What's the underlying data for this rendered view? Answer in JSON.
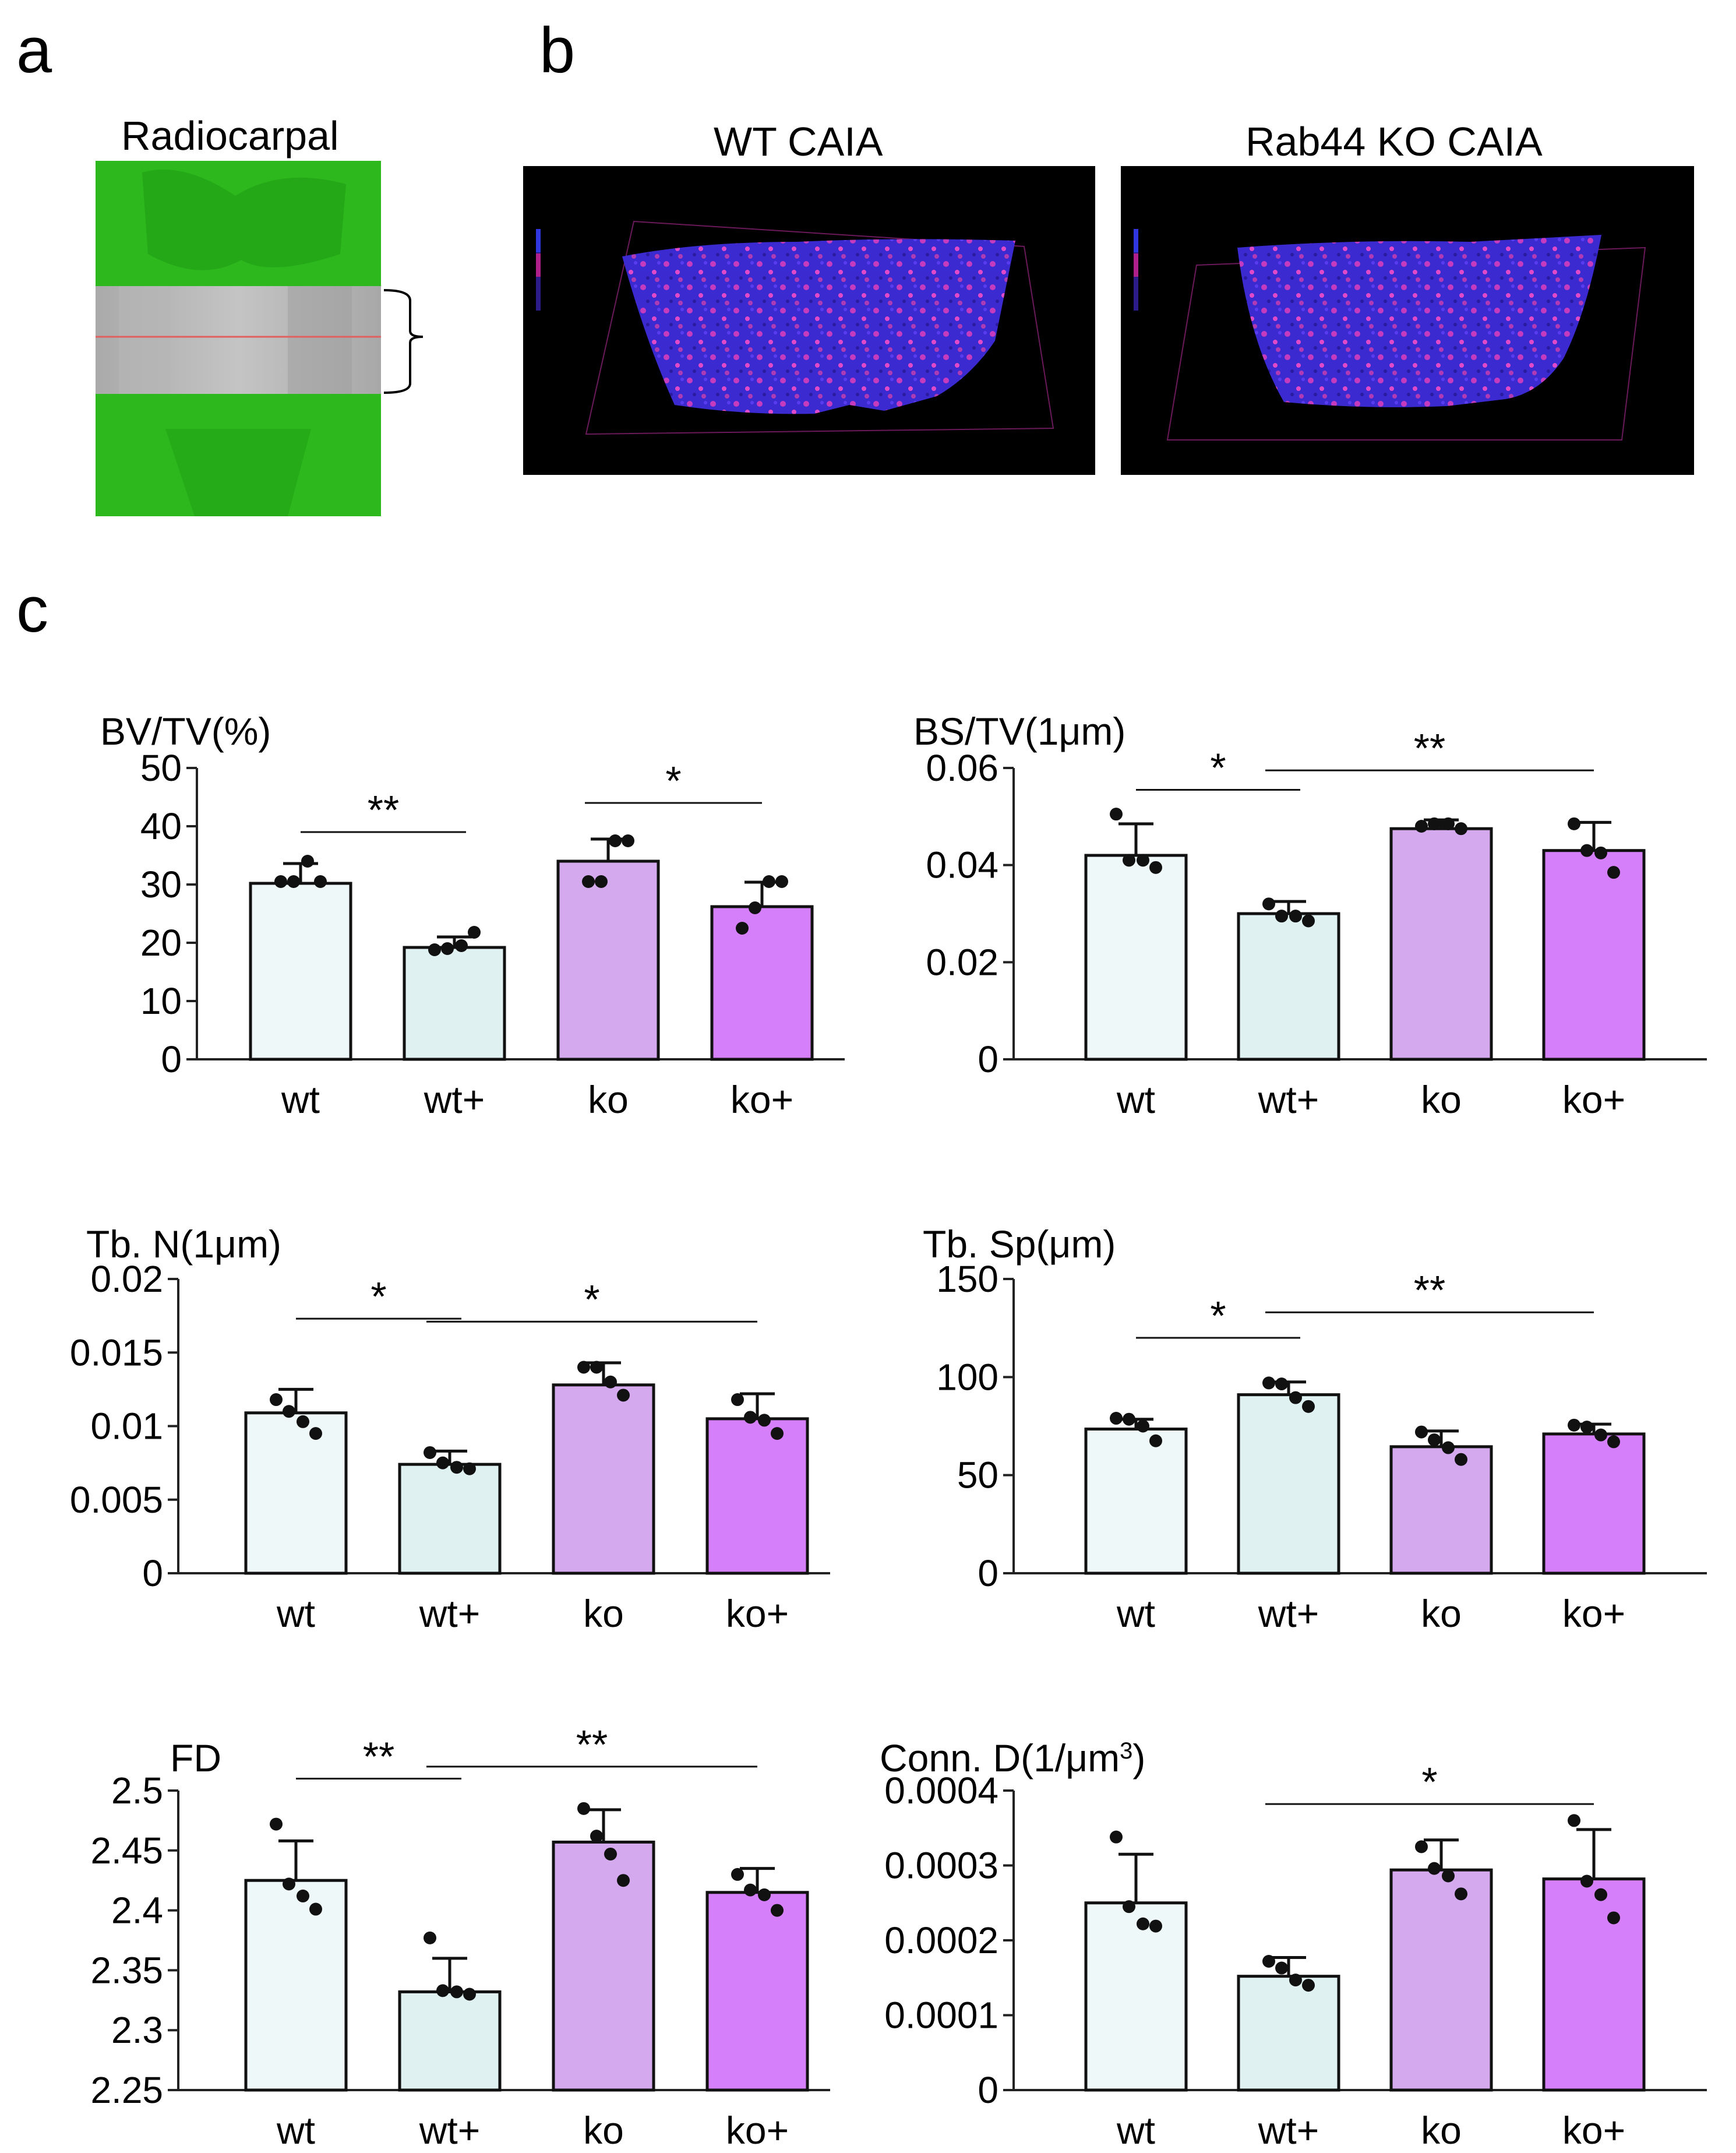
{
  "panels": {
    "a": "a",
    "b": "b",
    "c": "c"
  },
  "images": {
    "radiocarpal_title": "Radiocarpal",
    "wt_title": "WT CAIA",
    "ko_title": "Rab44 KO CAIA"
  },
  "colors": {
    "wt": "#eff8f8",
    "wt_plus": "#e0f1f1",
    "ko": "#d4a9ee",
    "ko_plus": "#d67ffa",
    "green": "#22b214",
    "ct_blue": "#3b2bd6",
    "ct_magenta": "#d43bb8"
  },
  "chart_data": [
    {
      "type": "bar",
      "id": "bvtv",
      "title": "BV/TV(%)",
      "categories": [
        "wt",
        "wt+",
        "ko",
        "ko+"
      ],
      "values": [
        30.2,
        19.2,
        34.0,
        26.2
      ],
      "errors": [
        3.4,
        1.8,
        3.8,
        4.2
      ],
      "points": [
        [
          30.5,
          30.5,
          34.0,
          30.5
        ],
        [
          18.8,
          19.0,
          19.5,
          21.8
        ],
        [
          30.5,
          30.5,
          37.5,
          37.5
        ],
        [
          22.5,
          26.0,
          30.5,
          30.5
        ]
      ],
      "ylim": [
        0,
        50
      ],
      "yticks": [
        0,
        10,
        20,
        30,
        40,
        50
      ],
      "ytick_labels": [
        "0",
        "10",
        "20",
        "30",
        "40",
        "50"
      ],
      "significance": [
        {
          "from": 0,
          "to": 1,
          "label": "**",
          "y": 39
        },
        {
          "from": 2,
          "to": 3,
          "label": "*",
          "y": 44
        }
      ]
    },
    {
      "type": "bar",
      "id": "bstv",
      "title": "BS/TV(1μm)",
      "categories": [
        "wt",
        "wt+",
        "ko",
        "ko+"
      ],
      "values": [
        0.042,
        0.03,
        0.0475,
        0.043
      ],
      "errors": [
        0.0065,
        0.0025,
        0.0018,
        0.0058
      ],
      "points": [
        [
          0.0505,
          0.041,
          0.041,
          0.0395
        ],
        [
          0.032,
          0.0295,
          0.0295,
          0.0285
        ],
        [
          0.048,
          0.0485,
          0.0485,
          0.0475
        ],
        [
          0.0485,
          0.043,
          0.0425,
          0.0385
        ]
      ],
      "ylim": [
        0,
        0.06
      ],
      "yticks": [
        0,
        0.02,
        0.04,
        0.06
      ],
      "ytick_labels": [
        "0",
        "0.02",
        "0.04",
        "0.06"
      ],
      "significance": [
        {
          "from": 0,
          "to": 1,
          "label": "*",
          "y": 0.0555
        },
        {
          "from": 1,
          "to": 3,
          "label": "**",
          "y": 0.0595
        }
      ]
    },
    {
      "type": "bar",
      "id": "tbn",
      "title": "Tb. N(1μm)",
      "categories": [
        "wt",
        "wt+",
        "ko",
        "ko+"
      ],
      "values": [
        0.0109,
        0.0074,
        0.0128,
        0.0105
      ],
      "errors": [
        0.0016,
        0.0009,
        0.0015,
        0.0017
      ],
      "points": [
        [
          0.0118,
          0.011,
          0.0103,
          0.0095
        ],
        [
          0.0082,
          0.0075,
          0.0072,
          0.0071
        ],
        [
          0.014,
          0.014,
          0.013,
          0.0121
        ],
        [
          0.0118,
          0.0106,
          0.0104,
          0.0095
        ]
      ],
      "ylim": [
        0,
        0.02
      ],
      "yticks": [
        0,
        0.005,
        0.01,
        0.015,
        0.02
      ],
      "ytick_labels": [
        "0",
        "0.005",
        "0.01",
        "0.015",
        "0.02"
      ],
      "significance": [
        {
          "from": 0,
          "to": 1,
          "label": "*",
          "y": 0.0173
        },
        {
          "from": 1,
          "to": 3,
          "label": "*",
          "y": 0.0171
        }
      ]
    },
    {
      "type": "bar",
      "id": "tbsp",
      "title": "Tb. Sp(μm)",
      "categories": [
        "wt",
        "wt+",
        "ko",
        "ko+"
      ],
      "values": [
        73.5,
        91.0,
        64.5,
        71.0
      ],
      "errors": [
        5.0,
        6.5,
        8.0,
        5.0
      ],
      "points": [
        [
          79.0,
          78.5,
          75.0,
          67.5
        ],
        [
          97.0,
          96.5,
          89.5,
          85.0
        ],
        [
          72.0,
          68.0,
          64.0,
          58.0
        ],
        [
          75.5,
          74.5,
          70.5,
          67.0
        ]
      ],
      "ylim": [
        0,
        150
      ],
      "yticks": [
        0,
        50,
        100,
        150
      ],
      "ytick_labels": [
        "0",
        "50",
        "100",
        "150"
      ],
      "significance": [
        {
          "from": 0,
          "to": 1,
          "label": "*",
          "y": 120
        },
        {
          "from": 1,
          "to": 3,
          "label": "**",
          "y": 133
        }
      ]
    },
    {
      "type": "bar",
      "id": "fd",
      "title": "FD",
      "categories": [
        "wt",
        "wt+",
        "ko",
        "ko+"
      ],
      "values": [
        2.425,
        2.332,
        2.457,
        2.415
      ],
      "errors": [
        0.033,
        0.028,
        0.027,
        0.02
      ],
      "points": [
        [
          2.472,
          2.422,
          2.412,
          2.401
        ],
        [
          2.377,
          2.333,
          2.332,
          2.33
        ],
        [
          2.485,
          2.462,
          2.447,
          2.425
        ],
        [
          2.43,
          2.417,
          2.413,
          2.4
        ]
      ],
      "ylim": [
        2.25,
        2.5
      ],
      "yticks": [
        2.25,
        2.3,
        2.35,
        2.4,
        2.45,
        2.5
      ],
      "ytick_labels": [
        "2.25",
        "2.3",
        "2.35",
        "2.4",
        "2.45",
        "2.5"
      ],
      "significance": [
        {
          "from": 0,
          "to": 1,
          "label": "**",
          "y": 2.51
        },
        {
          "from": 1,
          "to": 3,
          "label": "**",
          "y": 2.52
        }
      ]
    },
    {
      "type": "bar",
      "id": "connd",
      "title": "Conn. D(1/μm",
      "title_sup": "3",
      "title_end": ")",
      "categories": [
        "wt",
        "wt+",
        "ko",
        "ko+"
      ],
      "values": [
        0.00025,
        0.000152,
        0.000294,
        0.000282
      ],
      "errors": [
        6.5e-05,
        2.5e-05,
        4e-05,
        6.6e-05
      ],
      "points": [
        [
          0.000338,
          0.000245,
          0.000222,
          0.000219
        ],
        [
          0.000172,
          0.000163,
          0.000147,
          0.00014
        ],
        [
          0.000325,
          0.000296,
          0.000286,
          0.000262
        ],
        [
          0.00036,
          0.000279,
          0.000261,
          0.00023
        ]
      ],
      "ylim": [
        0,
        0.0004
      ],
      "yticks": [
        0,
        0.0001,
        0.0002,
        0.0003,
        0.0004
      ],
      "ytick_labels": [
        "0",
        "0.0001",
        "0.0002",
        "0.0003",
        "0.0004"
      ],
      "significance": [
        {
          "from": 1,
          "to": 3,
          "label": "*",
          "y": 0.000382
        }
      ]
    }
  ]
}
